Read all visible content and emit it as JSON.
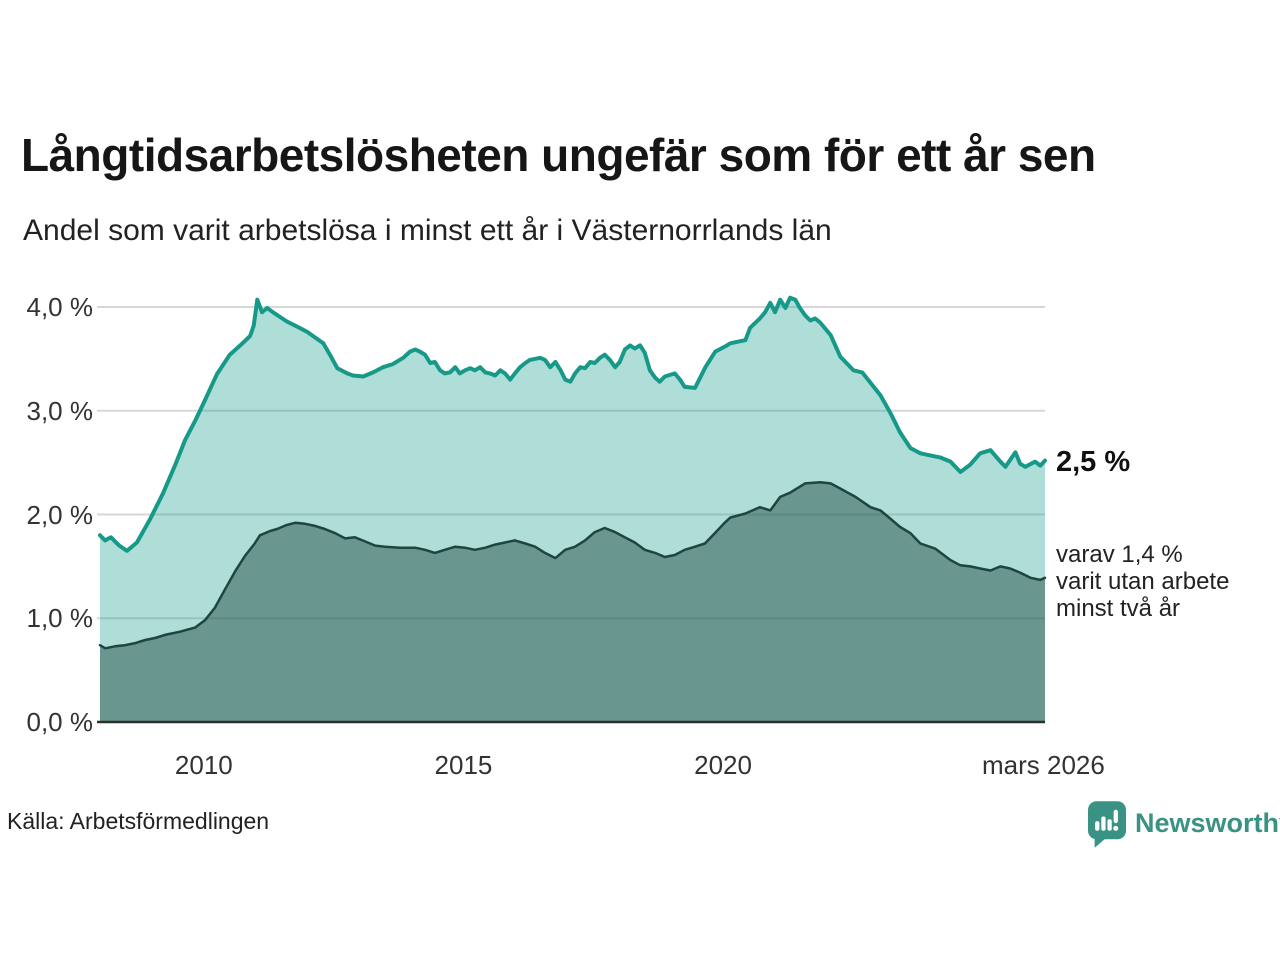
{
  "header": {
    "title": "Långtidsarbetslösheten ungefär som för ett år sen",
    "subtitle": "Andel som varit arbetslösa i minst ett år i Västernorrlands län"
  },
  "annotations": {
    "series1_end_label": "2,5 %",
    "series2_line1": "varav 1,4 %",
    "series2_line2": "varit utan arbete",
    "series2_line3": "minst två år"
  },
  "footer": {
    "source": "Källa: Arbetsförmedlingen",
    "brand": "Newsworthy"
  },
  "colors": {
    "accent_teal": "#17998a",
    "dark_teal": "#1e453f",
    "brand_teal": "#3a9285",
    "grid": "#d7d7d7",
    "axis": "#2e2e2e",
    "text": "#333333"
  },
  "chart_data": {
    "type": "area",
    "title": "Långtidsarbetslösheten ungefär som för ett år sen",
    "subtitle": "Andel som varit arbetslösa i minst ett år i Västernorrlands län",
    "xlim": [
      2008.0,
      2026.2
    ],
    "ylim": [
      0,
      4.2
    ],
    "grid": true,
    "legend_position": "right-annotations",
    "y_ticks": [
      {
        "label": "4,0 %",
        "value": 4.0
      },
      {
        "label": "3,0 %",
        "value": 3.0
      },
      {
        "label": "2,0 %",
        "value": 2.0
      },
      {
        "label": "1,0 %",
        "value": 1.0
      },
      {
        "label": "0,0 %",
        "value": 0.0
      }
    ],
    "x_ticks": [
      {
        "label": "2010",
        "year": 2010
      },
      {
        "label": "2015",
        "year": 2015
      },
      {
        "label": "2020",
        "year": 2020
      },
      {
        "label": "mars 2026",
        "year": 2026.17
      }
    ],
    "series": [
      {
        "name": "Andel arbetslösa minst ett år",
        "end_value": 2.5,
        "end_label": "2,5 %",
        "line_color": "#17998a",
        "fill_color": "rgba(26,158,143,0.35)",
        "line_width": 4,
        "points": [
          [
            2008.0,
            1.8
          ],
          [
            2008.1,
            1.75
          ],
          [
            2008.21,
            1.78
          ],
          [
            2008.37,
            1.7
          ],
          [
            2008.52,
            1.65
          ],
          [
            2008.71,
            1.73
          ],
          [
            2008.96,
            1.95
          ],
          [
            2009.21,
            2.2
          ],
          [
            2009.45,
            2.48
          ],
          [
            2009.64,
            2.72
          ],
          [
            2009.83,
            2.9
          ],
          [
            2010.02,
            3.1
          ],
          [
            2010.25,
            3.35
          ],
          [
            2010.5,
            3.54
          ],
          [
            2010.7,
            3.63
          ],
          [
            2010.89,
            3.72
          ],
          [
            2010.96,
            3.82
          ],
          [
            2011.03,
            4.07
          ],
          [
            2011.12,
            3.95
          ],
          [
            2011.22,
            3.99
          ],
          [
            2011.33,
            3.95
          ],
          [
            2011.6,
            3.86
          ],
          [
            2011.8,
            3.81
          ],
          [
            2011.99,
            3.76
          ],
          [
            2012.16,
            3.7
          ],
          [
            2012.3,
            3.65
          ],
          [
            2012.45,
            3.52
          ],
          [
            2012.57,
            3.41
          ],
          [
            2012.76,
            3.36
          ],
          [
            2012.87,
            3.34
          ],
          [
            2013.07,
            3.33
          ],
          [
            2013.26,
            3.37
          ],
          [
            2013.45,
            3.42
          ],
          [
            2013.64,
            3.45
          ],
          [
            2013.84,
            3.51
          ],
          [
            2013.97,
            3.57
          ],
          [
            2014.07,
            3.59
          ],
          [
            2014.16,
            3.57
          ],
          [
            2014.26,
            3.54
          ],
          [
            2014.36,
            3.46
          ],
          [
            2014.45,
            3.47
          ],
          [
            2014.55,
            3.39
          ],
          [
            2014.64,
            3.36
          ],
          [
            2014.74,
            3.37
          ],
          [
            2014.84,
            3.42
          ],
          [
            2014.93,
            3.36
          ],
          [
            2015.03,
            3.39
          ],
          [
            2015.13,
            3.41
          ],
          [
            2015.22,
            3.39
          ],
          [
            2015.32,
            3.42
          ],
          [
            2015.42,
            3.37
          ],
          [
            2015.51,
            3.36
          ],
          [
            2015.61,
            3.34
          ],
          [
            2015.71,
            3.39
          ],
          [
            2015.8,
            3.36
          ],
          [
            2015.9,
            3.3
          ],
          [
            2015.99,
            3.36
          ],
          [
            2016.09,
            3.42
          ],
          [
            2016.19,
            3.46
          ],
          [
            2016.28,
            3.49
          ],
          [
            2016.48,
            3.51
          ],
          [
            2016.57,
            3.49
          ],
          [
            2016.67,
            3.42
          ],
          [
            2016.77,
            3.47
          ],
          [
            2016.87,
            3.39
          ],
          [
            2016.96,
            3.3
          ],
          [
            2017.06,
            3.28
          ],
          [
            2017.15,
            3.36
          ],
          [
            2017.25,
            3.42
          ],
          [
            2017.34,
            3.41
          ],
          [
            2017.44,
            3.47
          ],
          [
            2017.53,
            3.46
          ],
          [
            2017.63,
            3.51
          ],
          [
            2017.72,
            3.54
          ],
          [
            2017.82,
            3.49
          ],
          [
            2017.92,
            3.42
          ],
          [
            2018.01,
            3.47
          ],
          [
            2018.11,
            3.59
          ],
          [
            2018.21,
            3.63
          ],
          [
            2018.3,
            3.6
          ],
          [
            2018.4,
            3.63
          ],
          [
            2018.49,
            3.56
          ],
          [
            2018.59,
            3.39
          ],
          [
            2018.69,
            3.32
          ],
          [
            2018.78,
            3.28
          ],
          [
            2018.88,
            3.33
          ],
          [
            2019.07,
            3.36
          ],
          [
            2019.17,
            3.3
          ],
          [
            2019.26,
            3.23
          ],
          [
            2019.46,
            3.22
          ],
          [
            2019.66,
            3.42
          ],
          [
            2019.85,
            3.57
          ],
          [
            2020.04,
            3.62
          ],
          [
            2020.14,
            3.65
          ],
          [
            2020.33,
            3.67
          ],
          [
            2020.43,
            3.68
          ],
          [
            2020.52,
            3.8
          ],
          [
            2020.71,
            3.89
          ],
          [
            2020.81,
            3.95
          ],
          [
            2020.91,
            4.04
          ],
          [
            2021.0,
            3.95
          ],
          [
            2021.1,
            4.07
          ],
          [
            2021.2,
            3.99
          ],
          [
            2021.29,
            4.09
          ],
          [
            2021.39,
            4.07
          ],
          [
            2021.48,
            3.99
          ],
          [
            2021.58,
            3.92
          ],
          [
            2021.68,
            3.87
          ],
          [
            2021.77,
            3.89
          ],
          [
            2021.87,
            3.85
          ],
          [
            2022.07,
            3.73
          ],
          [
            2022.26,
            3.52
          ],
          [
            2022.51,
            3.39
          ],
          [
            2022.68,
            3.37
          ],
          [
            2022.84,
            3.27
          ],
          [
            2023.03,
            3.15
          ],
          [
            2023.22,
            2.98
          ],
          [
            2023.41,
            2.79
          ],
          [
            2023.61,
            2.64
          ],
          [
            2023.8,
            2.59
          ],
          [
            2023.99,
            2.57
          ],
          [
            2024.18,
            2.55
          ],
          [
            2024.38,
            2.51
          ],
          [
            2024.57,
            2.41
          ],
          [
            2024.76,
            2.48
          ],
          [
            2024.95,
            2.59
          ],
          [
            2025.15,
            2.62
          ],
          [
            2025.34,
            2.51
          ],
          [
            2025.44,
            2.46
          ],
          [
            2025.63,
            2.6
          ],
          [
            2025.72,
            2.49
          ],
          [
            2025.82,
            2.46
          ],
          [
            2026.01,
            2.51
          ],
          [
            2026.11,
            2.47
          ],
          [
            2026.2,
            2.52
          ]
        ]
      },
      {
        "name": "varav utan arbete minst två år",
        "end_value": 1.4,
        "end_label": "varav 1,4 % varit utan arbete minst två år",
        "line_color": "#1e453f",
        "fill_color": "rgba(30,70,64,0.47)",
        "line_width": 2.5,
        "points": [
          [
            2008.0,
            0.74
          ],
          [
            2008.1,
            0.71
          ],
          [
            2008.29,
            0.73
          ],
          [
            2008.48,
            0.74
          ],
          [
            2008.68,
            0.76
          ],
          [
            2008.87,
            0.79
          ],
          [
            2009.06,
            0.81
          ],
          [
            2009.25,
            0.84
          ],
          [
            2009.54,
            0.87
          ],
          [
            2009.83,
            0.91
          ],
          [
            2010.02,
            0.98
          ],
          [
            2010.21,
            1.1
          ],
          [
            2010.41,
            1.28
          ],
          [
            2010.6,
            1.45
          ],
          [
            2010.79,
            1.6
          ],
          [
            2010.98,
            1.72
          ],
          [
            2011.08,
            1.8
          ],
          [
            2011.27,
            1.84
          ],
          [
            2011.41,
            1.86
          ],
          [
            2011.6,
            1.9
          ],
          [
            2011.76,
            1.92
          ],
          [
            2011.95,
            1.91
          ],
          [
            2012.14,
            1.89
          ],
          [
            2012.33,
            1.86
          ],
          [
            2012.53,
            1.82
          ],
          [
            2012.72,
            1.77
          ],
          [
            2012.91,
            1.78
          ],
          [
            2013.11,
            1.74
          ],
          [
            2013.3,
            1.7
          ],
          [
            2013.49,
            1.69
          ],
          [
            2013.78,
            1.68
          ],
          [
            2014.07,
            1.68
          ],
          [
            2014.26,
            1.66
          ],
          [
            2014.45,
            1.63
          ],
          [
            2014.64,
            1.66
          ],
          [
            2014.84,
            1.69
          ],
          [
            2015.03,
            1.68
          ],
          [
            2015.22,
            1.66
          ],
          [
            2015.42,
            1.68
          ],
          [
            2015.61,
            1.71
          ],
          [
            2015.8,
            1.73
          ],
          [
            2015.99,
            1.75
          ],
          [
            2016.19,
            1.72
          ],
          [
            2016.38,
            1.69
          ],
          [
            2016.57,
            1.63
          ],
          [
            2016.77,
            1.58
          ],
          [
            2016.96,
            1.66
          ],
          [
            2017.15,
            1.69
          ],
          [
            2017.34,
            1.75
          ],
          [
            2017.53,
            1.83
          ],
          [
            2017.72,
            1.87
          ],
          [
            2017.92,
            1.83
          ],
          [
            2018.11,
            1.78
          ],
          [
            2018.3,
            1.73
          ],
          [
            2018.49,
            1.66
          ],
          [
            2018.69,
            1.63
          ],
          [
            2018.88,
            1.59
          ],
          [
            2019.07,
            1.61
          ],
          [
            2019.26,
            1.66
          ],
          [
            2019.46,
            1.69
          ],
          [
            2019.65,
            1.72
          ],
          [
            2019.84,
            1.82
          ],
          [
            2020.03,
            1.92
          ],
          [
            2020.14,
            1.97
          ],
          [
            2020.43,
            2.01
          ],
          [
            2020.71,
            2.07
          ],
          [
            2020.91,
            2.04
          ],
          [
            2021.1,
            2.17
          ],
          [
            2021.29,
            2.21
          ],
          [
            2021.58,
            2.3
          ],
          [
            2021.87,
            2.31
          ],
          [
            2022.07,
            2.3
          ],
          [
            2022.26,
            2.25
          ],
          [
            2022.55,
            2.17
          ],
          [
            2022.84,
            2.07
          ],
          [
            2023.03,
            2.04
          ],
          [
            2023.22,
            1.96
          ],
          [
            2023.41,
            1.88
          ],
          [
            2023.61,
            1.82
          ],
          [
            2023.8,
            1.72
          ],
          [
            2024.09,
            1.67
          ],
          [
            2024.38,
            1.56
          ],
          [
            2024.57,
            1.51
          ],
          [
            2024.76,
            1.5
          ],
          [
            2024.95,
            1.48
          ],
          [
            2025.15,
            1.46
          ],
          [
            2025.34,
            1.5
          ],
          [
            2025.53,
            1.48
          ],
          [
            2025.72,
            1.44
          ],
          [
            2025.92,
            1.39
          ],
          [
            2026.11,
            1.37
          ],
          [
            2026.2,
            1.39
          ]
        ]
      }
    ]
  }
}
